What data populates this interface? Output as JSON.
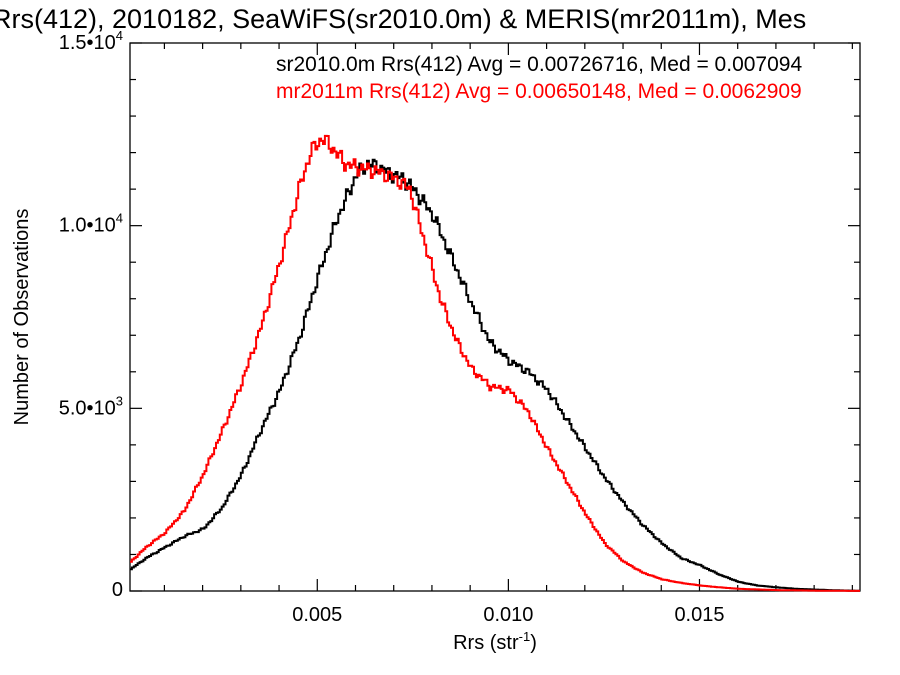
{
  "chart_data": {
    "type": "line",
    "title": "Rrs(412), 2010182, SeaWiFS(sr2010.0m) & MERIS(mr2011m), Mes",
    "xlabel_main": "Rrs (str",
    "xlabel_sup": "-1",
    "xlabel_close": ")",
    "ylabel": "Number of Observations",
    "xlim": [
      0.0001,
      0.0192
    ],
    "ylim": [
      0,
      15000
    ],
    "xticks": [
      0.005,
      0.01,
      0.015
    ],
    "xtick_labels": [
      "0.005",
      "0.010",
      "0.015"
    ],
    "yticks": [
      0,
      5000,
      10000,
      15000
    ],
    "ytick_labels": [
      {
        "text": "0",
        "base": "",
        "exp": ""
      },
      {
        "text": "",
        "base": "5.0•10",
        "exp": "3"
      },
      {
        "text": "",
        "base": "1.0•10",
        "exp": "4"
      },
      {
        "text": "",
        "base": "1.5•10",
        "exp": "4"
      }
    ],
    "legend_position": "top-right",
    "series": [
      {
        "name": "sr2010.0m",
        "label": "sr2010.0m Rrs(412) Avg = 0.00726716, Med = 0.007094",
        "color": "#000000",
        "x": [
          0.0001,
          0.0005,
          0.001,
          0.0015,
          0.002,
          0.0025,
          0.003,
          0.0035,
          0.004,
          0.0045,
          0.005,
          0.0055,
          0.0058,
          0.006,
          0.0063,
          0.0066,
          0.0069,
          0.0072,
          0.0075,
          0.008,
          0.0085,
          0.009,
          0.0095,
          0.01,
          0.0105,
          0.011,
          0.0115,
          0.012,
          0.0125,
          0.013,
          0.0135,
          0.014,
          0.0145,
          0.015,
          0.0155,
          0.016,
          0.0165,
          0.017,
          0.0175,
          0.018,
          0.0185,
          0.019,
          0.0192
        ],
        "y": [
          600,
          900,
          1200,
          1500,
          1700,
          2300,
          3200,
          4400,
          5500,
          6900,
          8600,
          10200,
          10900,
          11400,
          11700,
          11600,
          11400,
          11300,
          11000,
          10300,
          9100,
          7900,
          6800,
          6300,
          6000,
          5500,
          4700,
          3900,
          3100,
          2400,
          1800,
          1300,
          900,
          700,
          450,
          250,
          150,
          100,
          60,
          40,
          20,
          10,
          5
        ]
      },
      {
        "name": "mr2011m",
        "label": "mr2011m Rrs(412) Avg = 0.00650148, Med = 0.0062909",
        "color": "#ff0000",
        "x": [
          0.0001,
          0.0005,
          0.001,
          0.0015,
          0.002,
          0.0025,
          0.003,
          0.0035,
          0.004,
          0.0045,
          0.0048,
          0.0051,
          0.0054,
          0.0057,
          0.006,
          0.0065,
          0.007,
          0.0074,
          0.0078,
          0.0082,
          0.0086,
          0.009,
          0.0095,
          0.01,
          0.0105,
          0.011,
          0.0115,
          0.012,
          0.0125,
          0.013,
          0.0135,
          0.014,
          0.0145,
          0.015,
          0.0155,
          0.016,
          0.017,
          0.018,
          0.019,
          0.0192
        ],
        "y": [
          800,
          1200,
          1600,
          2200,
          3200,
          4400,
          5700,
          7200,
          9000,
          11000,
          12000,
          12400,
          12100,
          11700,
          11600,
          11500,
          11300,
          11000,
          9500,
          8000,
          6900,
          6100,
          5600,
          5500,
          4900,
          3900,
          3000,
          2100,
          1300,
          800,
          500,
          320,
          220,
          150,
          100,
          60,
          25,
          10,
          3,
          2
        ]
      }
    ]
  }
}
